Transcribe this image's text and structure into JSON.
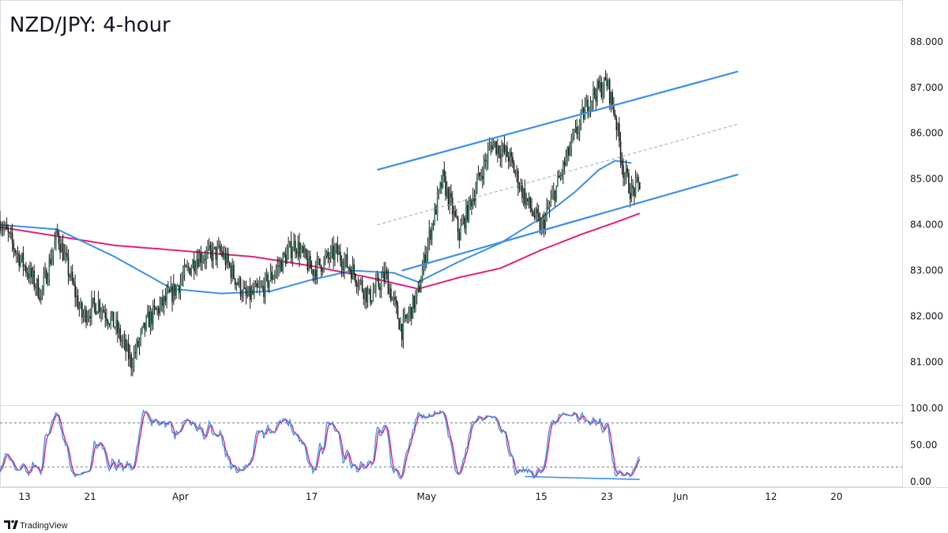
{
  "chart_data": {
    "type": "candlestick",
    "title": "NZD/JPY: 4-hour",
    "branding": "TradingView",
    "colors": {
      "up": "#2f7d5a",
      "down": "#1b1b1b",
      "wick": "#1b1b1b",
      "ma_fast": "#3d8fe6",
      "ma_slow": "#e0207a",
      "channel": "#3d8fe6",
      "midline": "#a3a6ad",
      "stoch_k": "#3d8fe6",
      "stoch_d": "#d81b78",
      "grid_border": "#d9dbe0"
    },
    "price_axis": {
      "min": 80.2,
      "max": 88.6,
      "ticks": [
        "88.000",
        "87.000",
        "86.000",
        "85.000",
        "84.000",
        "83.000",
        "82.000",
        "81.000"
      ]
    },
    "time_axis": {
      "start": "2023-03-10",
      "end": "2023-06-28",
      "labels": [
        {
          "date": "2023-03-13",
          "text": "13"
        },
        {
          "date": "2023-03-21",
          "text": "21"
        },
        {
          "date": "2023-04-01",
          "text": "Apr"
        },
        {
          "date": "2023-04-17",
          "text": "17"
        },
        {
          "date": "2023-05-01",
          "text": "May"
        },
        {
          "date": "2023-05-15",
          "text": "15"
        },
        {
          "date": "2023-05-23",
          "text": "23"
        },
        {
          "date": "2023-06-01",
          "text": "Jun"
        },
        {
          "date": "2023-06-12",
          "text": "12"
        },
        {
          "date": "2023-06-20",
          "text": "20"
        }
      ]
    },
    "close_anchors": [
      [
        "2023-03-10",
        84.1
      ],
      [
        "2023-03-12",
        83.4
      ],
      [
        "2023-03-15",
        82.5
      ],
      [
        "2023-03-17",
        83.8
      ],
      [
        "2023-03-18",
        83.2
      ],
      [
        "2023-03-20",
        82.0
      ],
      [
        "2023-03-22",
        82.3
      ],
      [
        "2023-03-24",
        81.8
      ],
      [
        "2023-03-26",
        81.0
      ],
      [
        "2023-03-28",
        81.9
      ],
      [
        "2023-03-31",
        82.5
      ],
      [
        "2023-04-03",
        83.3
      ],
      [
        "2023-04-06",
        83.4
      ],
      [
        "2023-04-09",
        82.4
      ],
      [
        "2023-04-11",
        82.6
      ],
      [
        "2023-04-15",
        83.6
      ],
      [
        "2023-04-17",
        83.0
      ],
      [
        "2023-04-20",
        83.4
      ],
      [
        "2023-04-22",
        83.0
      ],
      [
        "2023-04-24",
        82.4
      ],
      [
        "2023-04-26",
        82.9
      ],
      [
        "2023-04-28",
        81.7
      ],
      [
        "2023-04-30",
        82.5
      ],
      [
        "2023-05-01",
        83.5
      ],
      [
        "2023-05-03",
        85.0
      ],
      [
        "2023-05-05",
        83.8
      ],
      [
        "2023-05-07",
        84.8
      ],
      [
        "2023-05-09",
        85.8
      ],
      [
        "2023-05-11",
        85.5
      ],
      [
        "2023-05-13",
        84.6
      ],
      [
        "2023-05-15",
        83.9
      ],
      [
        "2023-05-17",
        84.9
      ],
      [
        "2023-05-19",
        85.9
      ],
      [
        "2023-05-21",
        86.8
      ],
      [
        "2023-05-23",
        87.1
      ],
      [
        "2023-05-24",
        86.4
      ],
      [
        "2023-05-25",
        85.2
      ],
      [
        "2023-05-26",
        84.7
      ],
      [
        "2023-05-27",
        84.9
      ]
    ],
    "ma_fast": [
      [
        "2023-03-10",
        84.0
      ],
      [
        "2023-03-17",
        83.9
      ],
      [
        "2023-03-24",
        83.3
      ],
      [
        "2023-03-31",
        82.6
      ],
      [
        "2023-04-06",
        82.5
      ],
      [
        "2023-04-12",
        82.55
      ],
      [
        "2023-04-17",
        82.8
      ],
      [
        "2023-04-22",
        83.0
      ],
      [
        "2023-04-27",
        82.95
      ],
      [
        "2023-04-30",
        82.75
      ],
      [
        "2023-05-05",
        83.2
      ],
      [
        "2023-05-10",
        83.6
      ],
      [
        "2023-05-15",
        84.15
      ],
      [
        "2023-05-19",
        84.7
      ],
      [
        "2023-05-22",
        85.2
      ],
      [
        "2023-05-24",
        85.4
      ],
      [
        "2023-05-26",
        85.35
      ]
    ],
    "ma_slow": [
      [
        "2023-03-10",
        83.95
      ],
      [
        "2023-03-17",
        83.75
      ],
      [
        "2023-03-24",
        83.55
      ],
      [
        "2023-03-31",
        83.45
      ],
      [
        "2023-04-10",
        83.3
      ],
      [
        "2023-04-17",
        83.1
      ],
      [
        "2023-04-24",
        82.85
      ],
      [
        "2023-04-30",
        82.6
      ],
      [
        "2023-05-05",
        82.85
      ],
      [
        "2023-05-10",
        83.05
      ],
      [
        "2023-05-15",
        83.45
      ],
      [
        "2023-05-20",
        83.8
      ],
      [
        "2023-05-24",
        84.05
      ],
      [
        "2023-05-27",
        84.25
      ]
    ],
    "channel": {
      "upper": [
        [
          "2023-04-25",
          85.2
        ],
        [
          "2023-06-08",
          87.35
        ]
      ],
      "lower": [
        [
          "2023-04-28",
          83.0
        ],
        [
          "2023-06-08",
          85.1
        ]
      ],
      "middle": [
        [
          "2023-04-25",
          84.0
        ],
        [
          "2023-06-08",
          86.2
        ]
      ]
    },
    "stochastic": {
      "axis_ticks": [
        "100.00",
        "50.00",
        "0.00"
      ],
      "levels": [
        80,
        20
      ],
      "range": [
        0,
        100
      ],
      "divergence_line": [
        [
          "2023-05-13",
          7
        ],
        [
          "2023-05-27",
          3
        ]
      ]
    }
  }
}
